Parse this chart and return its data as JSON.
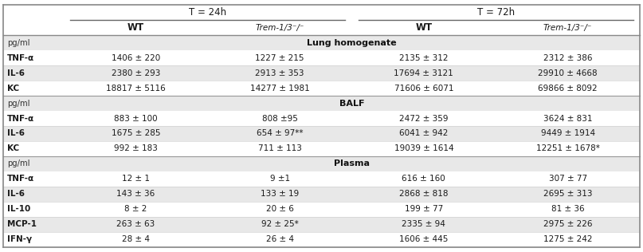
{
  "col_headers_top": [
    "T = 24h",
    "T = 72h"
  ],
  "col_headers_sub": [
    "WT",
    "Trem-1/3⁻/⁻",
    "WT",
    "Trem-1/3⁻/⁻"
  ],
  "sections": [
    {
      "section_label": "Lung homogenate",
      "unit_label": "pg/ml",
      "rows": [
        [
          "TNF-α",
          "1406 ± 220",
          "1227 ± 215",
          "2135 ± 312",
          "2312 ± 386"
        ],
        [
          "IL-6",
          "2380 ± 293",
          "2913 ± 353",
          "17694 ± 3121",
          "29910 ± 4668"
        ],
        [
          "KC",
          "18817 ± 5116",
          "14277 ± 1981",
          "71606 ± 6071",
          "69866 ± 8092"
        ]
      ]
    },
    {
      "section_label": "BALF",
      "unit_label": "pg/ml",
      "rows": [
        [
          "TNF-α",
          "883 ± 100",
          "808 ±95",
          "2472 ± 359",
          "3624 ± 831"
        ],
        [
          "IL-6",
          "1675 ± 285",
          "654 ± 97**",
          "6041 ± 942",
          "9449 ± 1914"
        ],
        [
          "KC",
          "992 ± 183",
          "711 ± 113",
          "19039 ± 1614",
          "12251 ± 1678*"
        ]
      ]
    },
    {
      "section_label": "Plasma",
      "unit_label": "pg/ml",
      "rows": [
        [
          "TNF-α",
          "12 ± 1",
          "9 ±1",
          "616 ± 160",
          "307 ± 77"
        ],
        [
          "IL-6",
          "143 ± 36",
          "133 ± 19",
          "2868 ± 818",
          "2695 ± 313"
        ],
        [
          "IL-10",
          "8 ± 2",
          "20 ± 6",
          "199 ± 77",
          "81 ± 36"
        ],
        [
          "MCP-1",
          "263 ± 63",
          "92 ± 25*",
          "2335 ± 94",
          "2975 ± 226"
        ],
        [
          "IFN-γ",
          "28 ± 4",
          "26 ± 4",
          "1606 ± 445",
          "1275 ± 242"
        ]
      ]
    }
  ],
  "bg_white": "#ffffff",
  "bg_light_gray": "#e8e8e8",
  "bg_medium_gray": "#d4d4d4",
  "text_color": "#1a1a1a",
  "line_color": "#999999",
  "figsize": [
    8.07,
    3.16
  ],
  "dpi": 100
}
